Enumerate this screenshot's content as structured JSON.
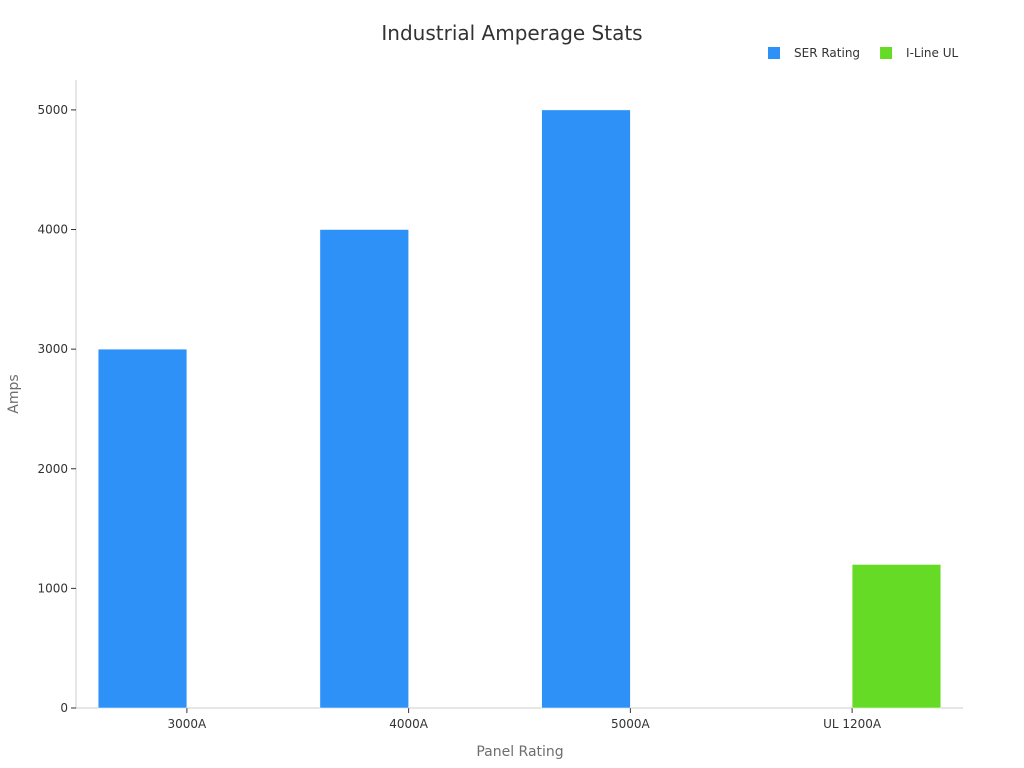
{
  "chart_data": {
    "type": "bar",
    "title": "Industrial Amperage Stats",
    "xlabel": "Panel Rating",
    "ylabel": "Amps",
    "categories": [
      "3000A",
      "4000A",
      "5000A",
      "UL 1200A"
    ],
    "ylim": [
      0,
      5250
    ],
    "yticks": [
      0,
      1000,
      2000,
      3000,
      4000,
      5000
    ],
    "grid": false,
    "legend_position": "top-right",
    "series": [
      {
        "name": "SER Rating",
        "color": "#2e91f7",
        "values": [
          3000,
          4000,
          5000,
          null
        ]
      },
      {
        "name": "I-Line UL",
        "color": "#66db26",
        "values": [
          null,
          null,
          null,
          1200
        ]
      }
    ]
  }
}
